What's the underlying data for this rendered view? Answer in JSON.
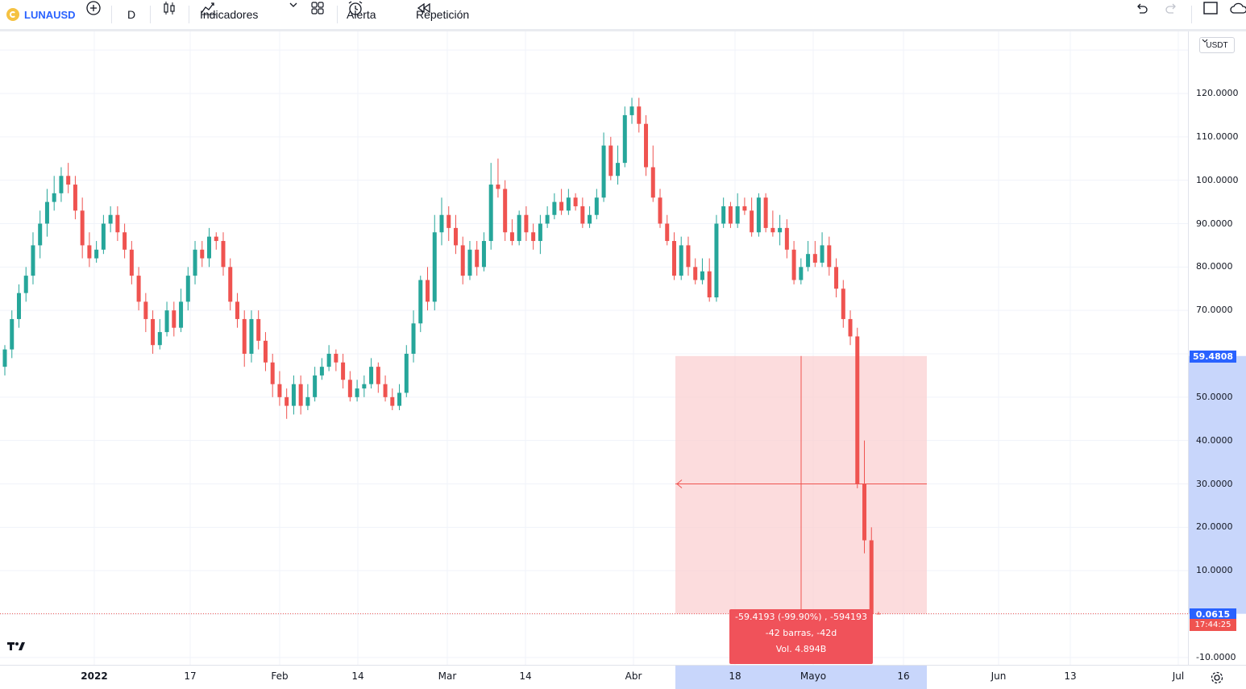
{
  "toolbar": {
    "symbol": "LUNAUSD",
    "interval": "D",
    "indicators_label": "Indicadores",
    "alert_label": "Alerta",
    "replay_label": "Repetición"
  },
  "price_axis": {
    "currency": "USDT",
    "labels": [
      "120.0000",
      "110.0000",
      "100.0000",
      "90.0000",
      "80.0000",
      "70.0000",
      "50.0000",
      "40.0000",
      "30.0000",
      "20.0000",
      "10.0000",
      "-10.0000"
    ],
    "tag_top": "59.4808",
    "tag_last": "0.0615",
    "countdown": "17:44:25"
  },
  "time_axis": {
    "labels": [
      "2022",
      "17",
      "Feb",
      "14",
      "Mar",
      "14",
      "Abr",
      "18",
      "Mayo",
      "16",
      "Jun",
      "13",
      "Jul"
    ]
  },
  "measure": {
    "line1": "-59.4193 (-99.90%) , -594193",
    "line2": "-42 barras, -42d",
    "line3": "Vol. 4.894B"
  },
  "colors": {
    "up": "#26a69a",
    "down": "#ef5350",
    "accent": "#2962ff",
    "measure_fill": "#fbd0d2"
  },
  "chart_data": {
    "type": "candlestick",
    "y_range": [
      -12,
      132
    ],
    "candles": [
      [
        57,
        61,
        55,
        62
      ],
      [
        61,
        68,
        59,
        70
      ],
      [
        68,
        74,
        66,
        76
      ],
      [
        74,
        78,
        72,
        80
      ],
      [
        78,
        85,
        76,
        88
      ],
      [
        85,
        90,
        82,
        93
      ],
      [
        90,
        95,
        87,
        98
      ],
      [
        95,
        97,
        93,
        101
      ],
      [
        97,
        101,
        95,
        103
      ],
      [
        101,
        99,
        97,
        104
      ],
      [
        99,
        93,
        91,
        101
      ],
      [
        93,
        85,
        82,
        96
      ],
      [
        85,
        82,
        80,
        88
      ],
      [
        82,
        84,
        81,
        86
      ],
      [
        84,
        90,
        83,
        92
      ],
      [
        90,
        92,
        88,
        94
      ],
      [
        92,
        88,
        86,
        94
      ],
      [
        88,
        84,
        82,
        90
      ],
      [
        84,
        78,
        76,
        86
      ],
      [
        78,
        72,
        70,
        80
      ],
      [
        72,
        68,
        65,
        74
      ],
      [
        68,
        62,
        60,
        70
      ],
      [
        62,
        65,
        61,
        68
      ],
      [
        65,
        70,
        64,
        72
      ],
      [
        70,
        66,
        64,
        72
      ],
      [
        66,
        72,
        65,
        75
      ],
      [
        72,
        78,
        70,
        80
      ],
      [
        78,
        84,
        76,
        86
      ],
      [
        84,
        82,
        80,
        86
      ],
      [
        82,
        87,
        80,
        89
      ],
      [
        87,
        86,
        84,
        88
      ],
      [
        86,
        80,
        78,
        88
      ],
      [
        80,
        72,
        70,
        82
      ],
      [
        72,
        68,
        66,
        74
      ],
      [
        68,
        60,
        57,
        70
      ],
      [
        60,
        68,
        58,
        70
      ],
      [
        68,
        63,
        61,
        70
      ],
      [
        63,
        58,
        56,
        65
      ],
      [
        58,
        53,
        50,
        60
      ],
      [
        53,
        50,
        48,
        56
      ],
      [
        50,
        48,
        45,
        52
      ],
      [
        48,
        53,
        46,
        55
      ],
      [
        53,
        48,
        46,
        55
      ],
      [
        48,
        50,
        47,
        53
      ],
      [
        50,
        55,
        49,
        57
      ],
      [
        55,
        57,
        54,
        59
      ],
      [
        57,
        60,
        56,
        62
      ],
      [
        60,
        58,
        56,
        61
      ],
      [
        58,
        54,
        52,
        60
      ],
      [
        54,
        50,
        49,
        56
      ],
      [
        50,
        52,
        49,
        54
      ],
      [
        52,
        53,
        50,
        55
      ],
      [
        53,
        57,
        52,
        59
      ],
      [
        57,
        53,
        51,
        58
      ],
      [
        53,
        50,
        49,
        55
      ],
      [
        50,
        48,
        47,
        52
      ],
      [
        48,
        51,
        47,
        53
      ],
      [
        51,
        60,
        50,
        62
      ],
      [
        60,
        67,
        58,
        70
      ],
      [
        67,
        77,
        65,
        78
      ],
      [
        77,
        72,
        70,
        80
      ],
      [
        72,
        88,
        70,
        92
      ],
      [
        88,
        92,
        85,
        96
      ],
      [
        92,
        89,
        86,
        94
      ],
      [
        89,
        85,
        83,
        92
      ],
      [
        85,
        78,
        76,
        87
      ],
      [
        78,
        84,
        77,
        86
      ],
      [
        84,
        80,
        78,
        86
      ],
      [
        80,
        86,
        79,
        88
      ],
      [
        86,
        99,
        84,
        104
      ],
      [
        99,
        98,
        96,
        105
      ],
      [
        98,
        88,
        86,
        100
      ],
      [
        88,
        86,
        85,
        91
      ],
      [
        86,
        92,
        85,
        93
      ],
      [
        92,
        88,
        86,
        94
      ],
      [
        88,
        86,
        84,
        90
      ],
      [
        86,
        90,
        83,
        92
      ],
      [
        90,
        92,
        89,
        94
      ],
      [
        92,
        95,
        91,
        97
      ],
      [
        95,
        93,
        92,
        98
      ],
      [
        93,
        96,
        92,
        98
      ],
      [
        96,
        94,
        93,
        97
      ],
      [
        94,
        90,
        89,
        96
      ],
      [
        90,
        92,
        89,
        94
      ],
      [
        92,
        96,
        91,
        98
      ],
      [
        96,
        108,
        95,
        111
      ],
      [
        108,
        101,
        100,
        110
      ],
      [
        101,
        104,
        99,
        108
      ],
      [
        104,
        115,
        103,
        117
      ],
      [
        115,
        117,
        113,
        119
      ],
      [
        117,
        113,
        111,
        119
      ],
      [
        113,
        103,
        101,
        115
      ],
      [
        103,
        96,
        95,
        108
      ],
      [
        96,
        90,
        89,
        98
      ],
      [
        90,
        86,
        85,
        92
      ],
      [
        86,
        78,
        77,
        88
      ],
      [
        78,
        85,
        77,
        87
      ],
      [
        85,
        80,
        78,
        87
      ],
      [
        80,
        77,
        76,
        82
      ],
      [
        77,
        79,
        76,
        82
      ],
      [
        79,
        73,
        72,
        82
      ],
      [
        73,
        90,
        72,
        92
      ],
      [
        90,
        94,
        89,
        96
      ],
      [
        94,
        90,
        89,
        95
      ],
      [
        90,
        94,
        89,
        97
      ],
      [
        94,
        93,
        92,
        96
      ],
      [
        93,
        88,
        87,
        96
      ],
      [
        88,
        96,
        87,
        97
      ],
      [
        96,
        89,
        88,
        97
      ],
      [
        89,
        88,
        87,
        93
      ],
      [
        88,
        89,
        85,
        92
      ],
      [
        89,
        84,
        82,
        91
      ],
      [
        84,
        77,
        76,
        86
      ],
      [
        77,
        80,
        76,
        82
      ],
      [
        80,
        83,
        79,
        86
      ],
      [
        83,
        81,
        80,
        86
      ],
      [
        81,
        85,
        80,
        88
      ],
      [
        85,
        80,
        78,
        87
      ],
      [
        80,
        75,
        73,
        82
      ],
      [
        75,
        68,
        66,
        77
      ],
      [
        68,
        64,
        62,
        70
      ],
      [
        64,
        30,
        29,
        66
      ],
      [
        30,
        17,
        14,
        40
      ],
      [
        17,
        0.1,
        0,
        20
      ],
      [
        0.1,
        0.06,
        0,
        0.5
      ]
    ],
    "measure_from": 59.48,
    "measure_to": 0.06,
    "crosshair_price": 30.0
  }
}
